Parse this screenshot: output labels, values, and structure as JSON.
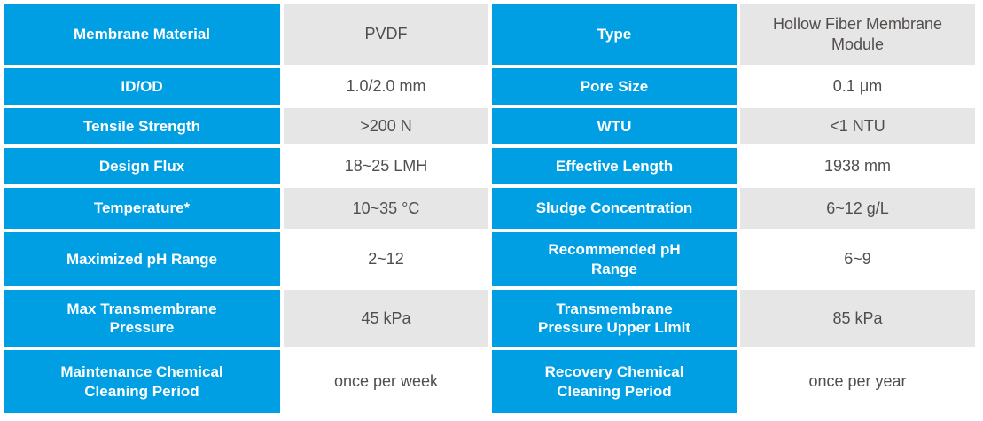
{
  "colors": {
    "header_bg": "#009fe3",
    "header_text": "#ffffff",
    "value_alt_bg": "#e7e6e6",
    "value_bg": "#ffffff",
    "value_text": "#514e4c"
  },
  "table": {
    "rows": [
      {
        "label_left": "Membrane Material",
        "value_left": "PVDF",
        "label_right": "Type",
        "value_right": "Hollow Fiber Membrane\nModule"
      },
      {
        "label_left": "ID/OD",
        "value_left": "1.0/2.0 mm",
        "label_right": "Pore Size",
        "value_right": "0.1 μm"
      },
      {
        "label_left": "Tensile Strength",
        "value_left": ">200 N",
        "label_right": "WTU",
        "value_right": "<1 NTU"
      },
      {
        "label_left": "Design Flux",
        "value_left": "18~25 LMH",
        "label_right": "Effective Length",
        "value_right": "1938 mm"
      },
      {
        "label_left": "Temperature*",
        "value_left": "10~35 °C",
        "label_right": "Sludge Concentration",
        "value_right": "6~12 g/L"
      },
      {
        "label_left": "Maximized pH Range",
        "value_left": "2~12",
        "label_right": "Recommended pH\nRange",
        "value_right": "6~9"
      },
      {
        "label_left": "Max Transmembrane\nPressure",
        "value_left": "45 kPa",
        "label_right": "Transmembrane\nPressure Upper Limit",
        "value_right": "85 kPa"
      },
      {
        "label_left": "Maintenance Chemical\nCleaning Period",
        "value_left": "once per week",
        "label_right": "Recovery Chemical\nCleaning Period",
        "value_right": "once per year"
      }
    ]
  }
}
